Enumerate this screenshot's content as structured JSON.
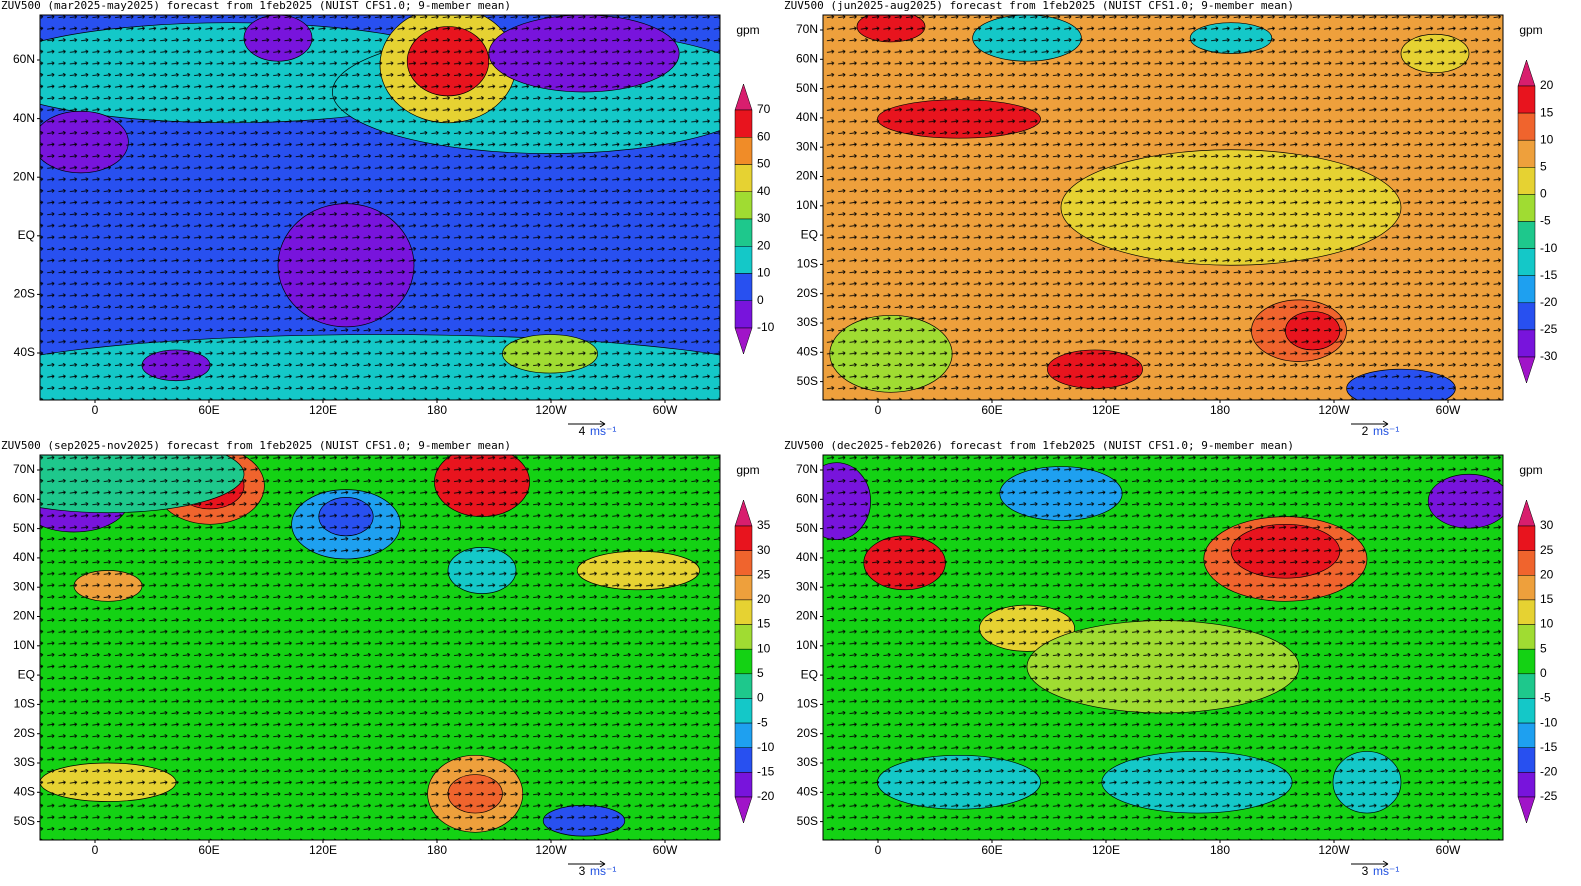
{
  "panels": [
    {
      "title": "ZUV500 (mar2025-may2025) forecast from 1feb2025 (NUIST CFS1.0; 9-member mean)",
      "lat_labels": [
        "60N",
        "40N",
        "20N",
        "EQ",
        "20S",
        "40S"
      ],
      "lon_labels": [
        "0",
        "60E",
        "120E",
        "180",
        "120W",
        "60W"
      ],
      "unit": "gpm",
      "colorbar": {
        "labels": [
          70,
          60,
          50,
          40,
          30,
          20,
          10,
          0,
          -10
        ],
        "colors": [
          "#d81e6e",
          "#e8141e",
          "#f08c28",
          "#e6d232",
          "#a0dc32",
          "#1ec88c",
          "#14c8c8",
          "#2850f0",
          "#7814dc",
          "#a014c8"
        ]
      },
      "vector_ref": {
        "value": "4",
        "unit": "ms⁻¹"
      }
    },
    {
      "title": "ZUV500 (jun2025-aug2025) forecast from 1feb2025 (NUIST CFS1.0; 9-member mean)",
      "lat_labels": [
        "70N",
        "60N",
        "50N",
        "40N",
        "30N",
        "20N",
        "10N",
        "EQ",
        "10S",
        "20S",
        "30S",
        "40S",
        "50S"
      ],
      "lon_labels": [
        "0",
        "60E",
        "120E",
        "180",
        "120W",
        "60W"
      ],
      "unit": "gpm",
      "colorbar": {
        "labels": [
          20,
          15,
          10,
          5,
          0,
          -5,
          -10,
          -15,
          -20,
          -25,
          -30
        ],
        "colors": [
          "#d81e6e",
          "#e8141e",
          "#f0642d",
          "#eea03c",
          "#e6d232",
          "#a0dc32",
          "#1ec88c",
          "#14c8c8",
          "#1ea0f0",
          "#2850f0",
          "#7814dc",
          "#a014c8"
        ]
      },
      "vector_ref": {
        "value": "2",
        "unit": "ms⁻¹"
      }
    },
    {
      "title": "ZUV500 (sep2025-nov2025) forecast from 1feb2025 (NUIST CFS1.0; 9-member mean)",
      "lat_labels": [
        "70N",
        "60N",
        "50N",
        "40N",
        "30N",
        "20N",
        "10N",
        "EQ",
        "10S",
        "20S",
        "30S",
        "40S",
        "50S"
      ],
      "lon_labels": [
        "0",
        "60E",
        "120E",
        "180",
        "120W",
        "60W"
      ],
      "unit": "gpm",
      "colorbar": {
        "labels": [
          35,
          30,
          25,
          20,
          15,
          10,
          5,
          0,
          -5,
          -10,
          -15,
          -20
        ],
        "colors": [
          "#d81e6e",
          "#e8141e",
          "#f0642d",
          "#eea03c",
          "#e6d232",
          "#a0dc32",
          "#14d214",
          "#1ec88c",
          "#14c8c8",
          "#1ea0f0",
          "#2850f0",
          "#7814dc",
          "#a014c8"
        ]
      },
      "vector_ref": {
        "value": "3",
        "unit": "ms⁻¹"
      }
    },
    {
      "title": "ZUV500 (dec2025-feb2026) forecast from 1feb2025 (NUIST CFS1.0; 9-member mean)",
      "lat_labels": [
        "70N",
        "60N",
        "50N",
        "40N",
        "30N",
        "20N",
        "10N",
        "EQ",
        "10S",
        "20S",
        "30S",
        "40S",
        "50S"
      ],
      "lon_labels": [
        "0",
        "60E",
        "120E",
        "180",
        "120W",
        "60W"
      ],
      "unit": "gpm",
      "colorbar": {
        "labels": [
          30,
          25,
          20,
          15,
          10,
          5,
          0,
          -5,
          -10,
          -15,
          -20,
          -25
        ],
        "colors": [
          "#d81e6e",
          "#e8141e",
          "#f0642d",
          "#eea03c",
          "#e6d232",
          "#a0dc32",
          "#14d214",
          "#1ec88c",
          "#14c8c8",
          "#1ea0f0",
          "#2850f0",
          "#7814dc",
          "#a014c8"
        ]
      },
      "vector_ref": {
        "value": "3",
        "unit": "ms⁻¹"
      }
    }
  ]
}
